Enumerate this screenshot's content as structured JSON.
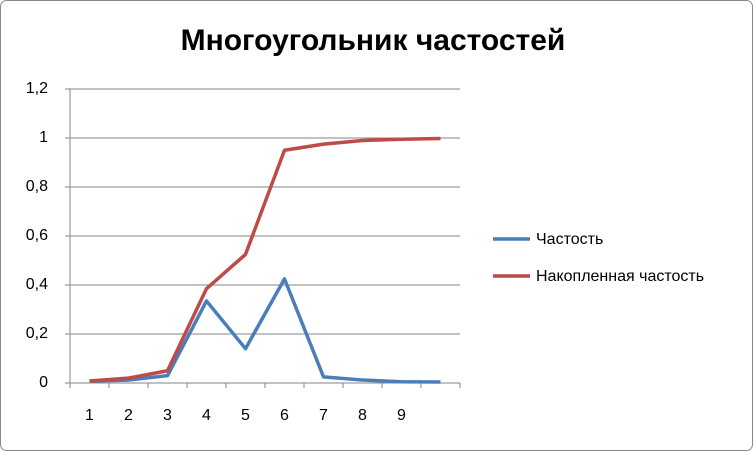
{
  "chart_data": {
    "type": "line",
    "title": "Многоугольник частостей",
    "categories": [
      1,
      2,
      3,
      4,
      5,
      6,
      7,
      8,
      9,
      null
    ],
    "series": [
      {
        "name": "Частость",
        "color": "#4a7ebb",
        "values": [
          0.008,
          0.012,
          0.03,
          0.335,
          0.14,
          0.425,
          0.025,
          0.012,
          0.005,
          0.004
        ]
      },
      {
        "name": "Накопленная частость",
        "color": "#be4b48",
        "values": [
          0.008,
          0.02,
          0.05,
          0.385,
          0.525,
          0.95,
          0.975,
          0.99,
          0.995,
          0.998
        ]
      }
    ],
    "ylim": [
      0,
      1.2
    ],
    "yticks": [
      0,
      {
        "value": 0.2,
        "label": "0,2"
      },
      {
        "value": 0.4,
        "label": "0,4"
      },
      {
        "value": 0.6,
        "label": "0,6"
      },
      {
        "value": 0.8,
        "label": "0,8"
      },
      1,
      {
        "value": 1.2,
        "label": "1,2"
      }
    ],
    "grid": true,
    "legend": "right"
  }
}
